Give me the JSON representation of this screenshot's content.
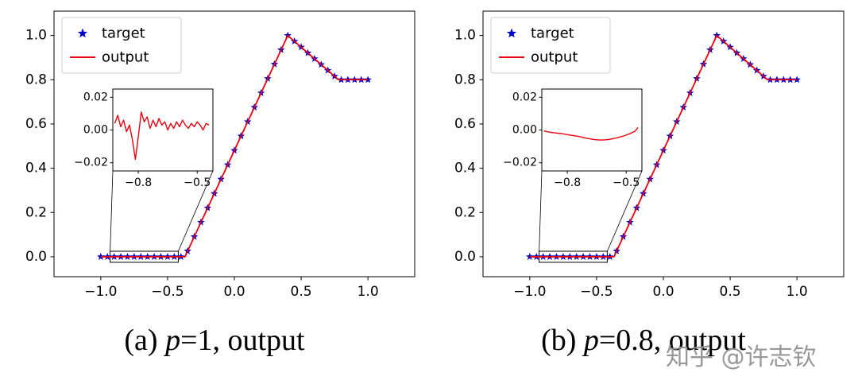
{
  "captions": [
    {
      "prefix": "(a) ",
      "var": "p",
      "rest": "=1, output"
    },
    {
      "prefix": "(b) ",
      "var": "p",
      "rest": "=0.8, output"
    }
  ],
  "watermark": "知乎 @许志钦",
  "chart_data": [
    {
      "type": "line",
      "title": "",
      "xlabel": "",
      "ylabel": "",
      "caption": "(a) p=1, output",
      "legend_position": "upper left",
      "xlim": [
        -1.35,
        1.35
      ],
      "ylim": [
        -0.09,
        1.11
      ],
      "xticks": [
        -1.0,
        -0.5,
        0.0,
        0.5,
        1.0
      ],
      "xtick_labels": [
        "−1.0",
        "−0.5",
        "0.0",
        "0.5",
        "1.0"
      ],
      "yticks": [
        0.0,
        0.2,
        0.4,
        0.6,
        0.8,
        1.0
      ],
      "ytick_labels": [
        "0.0",
        "0.2",
        "0.4",
        "0.6",
        "0.8",
        "1.0"
      ],
      "series": [
        {
          "name": "target",
          "marker": "star",
          "color": "#0000cd",
          "x_start": -1.0,
          "x_end": 1.0,
          "n": 41
        },
        {
          "name": "output",
          "marker": "line",
          "color": "#e8000d"
        }
      ],
      "piecewise_anchors": [
        [
          -1.0,
          0.0
        ],
        [
          -0.37,
          0.0
        ],
        [
          0.4,
          1.0
        ],
        [
          0.78,
          0.8
        ],
        [
          1.0,
          0.8
        ]
      ],
      "inset": {
        "xlim": [
          -0.93,
          -0.42
        ],
        "ylim": [
          -0.025,
          0.025
        ],
        "xticks": [
          -0.8,
          -0.5
        ],
        "xtick_labels": [
          "−0.8",
          "−0.5"
        ],
        "yticks": [
          -0.02,
          0.0,
          0.02
        ],
        "ytick_labels": [
          "−0.02",
          "0.00",
          "0.02"
        ],
        "series": [
          [
            -0.92,
            0.004
          ],
          [
            -0.905,
            0.009
          ],
          [
            -0.89,
            0.002
          ],
          [
            -0.875,
            0.006
          ],
          [
            -0.86,
            -0.001
          ],
          [
            -0.845,
            0.003
          ],
          [
            -0.83,
            -0.006
          ],
          [
            -0.815,
            -0.018
          ],
          [
            -0.8,
            -0.004
          ],
          [
            -0.785,
            0.011
          ],
          [
            -0.77,
            0.005
          ],
          [
            -0.755,
            0.008
          ],
          [
            -0.74,
            0.001
          ],
          [
            -0.725,
            0.006
          ],
          [
            -0.71,
            0.002
          ],
          [
            -0.695,
            0.007
          ],
          [
            -0.68,
            0.003
          ],
          [
            -0.665,
            0.005
          ],
          [
            -0.65,
            0.0
          ],
          [
            -0.635,
            0.004
          ],
          [
            -0.62,
            0.001
          ],
          [
            -0.605,
            0.005
          ],
          [
            -0.59,
            0.002
          ],
          [
            -0.575,
            0.006
          ],
          [
            -0.56,
            0.003
          ],
          [
            -0.545,
            0.001
          ],
          [
            -0.53,
            0.004
          ],
          [
            -0.515,
            0.002
          ],
          [
            -0.5,
            0.005
          ],
          [
            -0.485,
            0.003
          ],
          [
            -0.47,
            0.0
          ],
          [
            -0.455,
            0.004
          ],
          [
            -0.44,
            0.003
          ]
        ]
      }
    },
    {
      "type": "line",
      "title": "",
      "xlabel": "",
      "ylabel": "",
      "caption": "(b) p=0.8, output",
      "legend_position": "upper left",
      "xlim": [
        -1.35,
        1.35
      ],
      "ylim": [
        -0.09,
        1.11
      ],
      "xticks": [
        -1.0,
        -0.5,
        0.0,
        0.5,
        1.0
      ],
      "xtick_labels": [
        "−1.0",
        "−0.5",
        "0.0",
        "0.5",
        "1.0"
      ],
      "yticks": [
        0.0,
        0.2,
        0.4,
        0.6,
        0.8,
        1.0
      ],
      "ytick_labels": [
        "0.0",
        "0.2",
        "0.4",
        "0.6",
        "0.8",
        "1.0"
      ],
      "series": [
        {
          "name": "target",
          "marker": "star",
          "color": "#0000cd",
          "x_start": -1.0,
          "x_end": 1.0,
          "n": 41
        },
        {
          "name": "output",
          "marker": "line",
          "color": "#e8000d"
        }
      ],
      "piecewise_anchors": [
        [
          -1.0,
          0.0
        ],
        [
          -0.37,
          0.0
        ],
        [
          0.4,
          1.0
        ],
        [
          0.78,
          0.8
        ],
        [
          1.0,
          0.8
        ]
      ],
      "inset": {
        "xlim": [
          -0.93,
          -0.42
        ],
        "ylim": [
          -0.025,
          0.025
        ],
        "xticks": [
          -0.8,
          -0.5
        ],
        "xtick_labels": [
          "−0.8",
          "−0.5"
        ],
        "yticks": [
          -0.02,
          0.0,
          0.02
        ],
        "ytick_labels": [
          "−0.02",
          "0.00",
          "0.02"
        ],
        "series": [
          [
            -0.92,
            -0.0005
          ],
          [
            -0.905,
            -0.001
          ],
          [
            -0.89,
            -0.0013
          ],
          [
            -0.875,
            -0.0016
          ],
          [
            -0.86,
            -0.0018
          ],
          [
            -0.845,
            -0.002
          ],
          [
            -0.83,
            -0.0022
          ],
          [
            -0.815,
            -0.0025
          ],
          [
            -0.8,
            -0.0028
          ],
          [
            -0.785,
            -0.0031
          ],
          [
            -0.77,
            -0.0034
          ],
          [
            -0.755,
            -0.0037
          ],
          [
            -0.74,
            -0.004
          ],
          [
            -0.725,
            -0.0044
          ],
          [
            -0.71,
            -0.0048
          ],
          [
            -0.695,
            -0.0052
          ],
          [
            -0.68,
            -0.0055
          ],
          [
            -0.665,
            -0.0058
          ],
          [
            -0.65,
            -0.006
          ],
          [
            -0.635,
            -0.0061
          ],
          [
            -0.62,
            -0.0061
          ],
          [
            -0.605,
            -0.006
          ],
          [
            -0.59,
            -0.0058
          ],
          [
            -0.575,
            -0.0055
          ],
          [
            -0.56,
            -0.0051
          ],
          [
            -0.545,
            -0.0047
          ],
          [
            -0.53,
            -0.0042
          ],
          [
            -0.515,
            -0.0037
          ],
          [
            -0.5,
            -0.0031
          ],
          [
            -0.485,
            -0.0024
          ],
          [
            -0.47,
            -0.0016
          ],
          [
            -0.455,
            -0.0007
          ],
          [
            -0.44,
            0.0015
          ]
        ]
      }
    }
  ]
}
